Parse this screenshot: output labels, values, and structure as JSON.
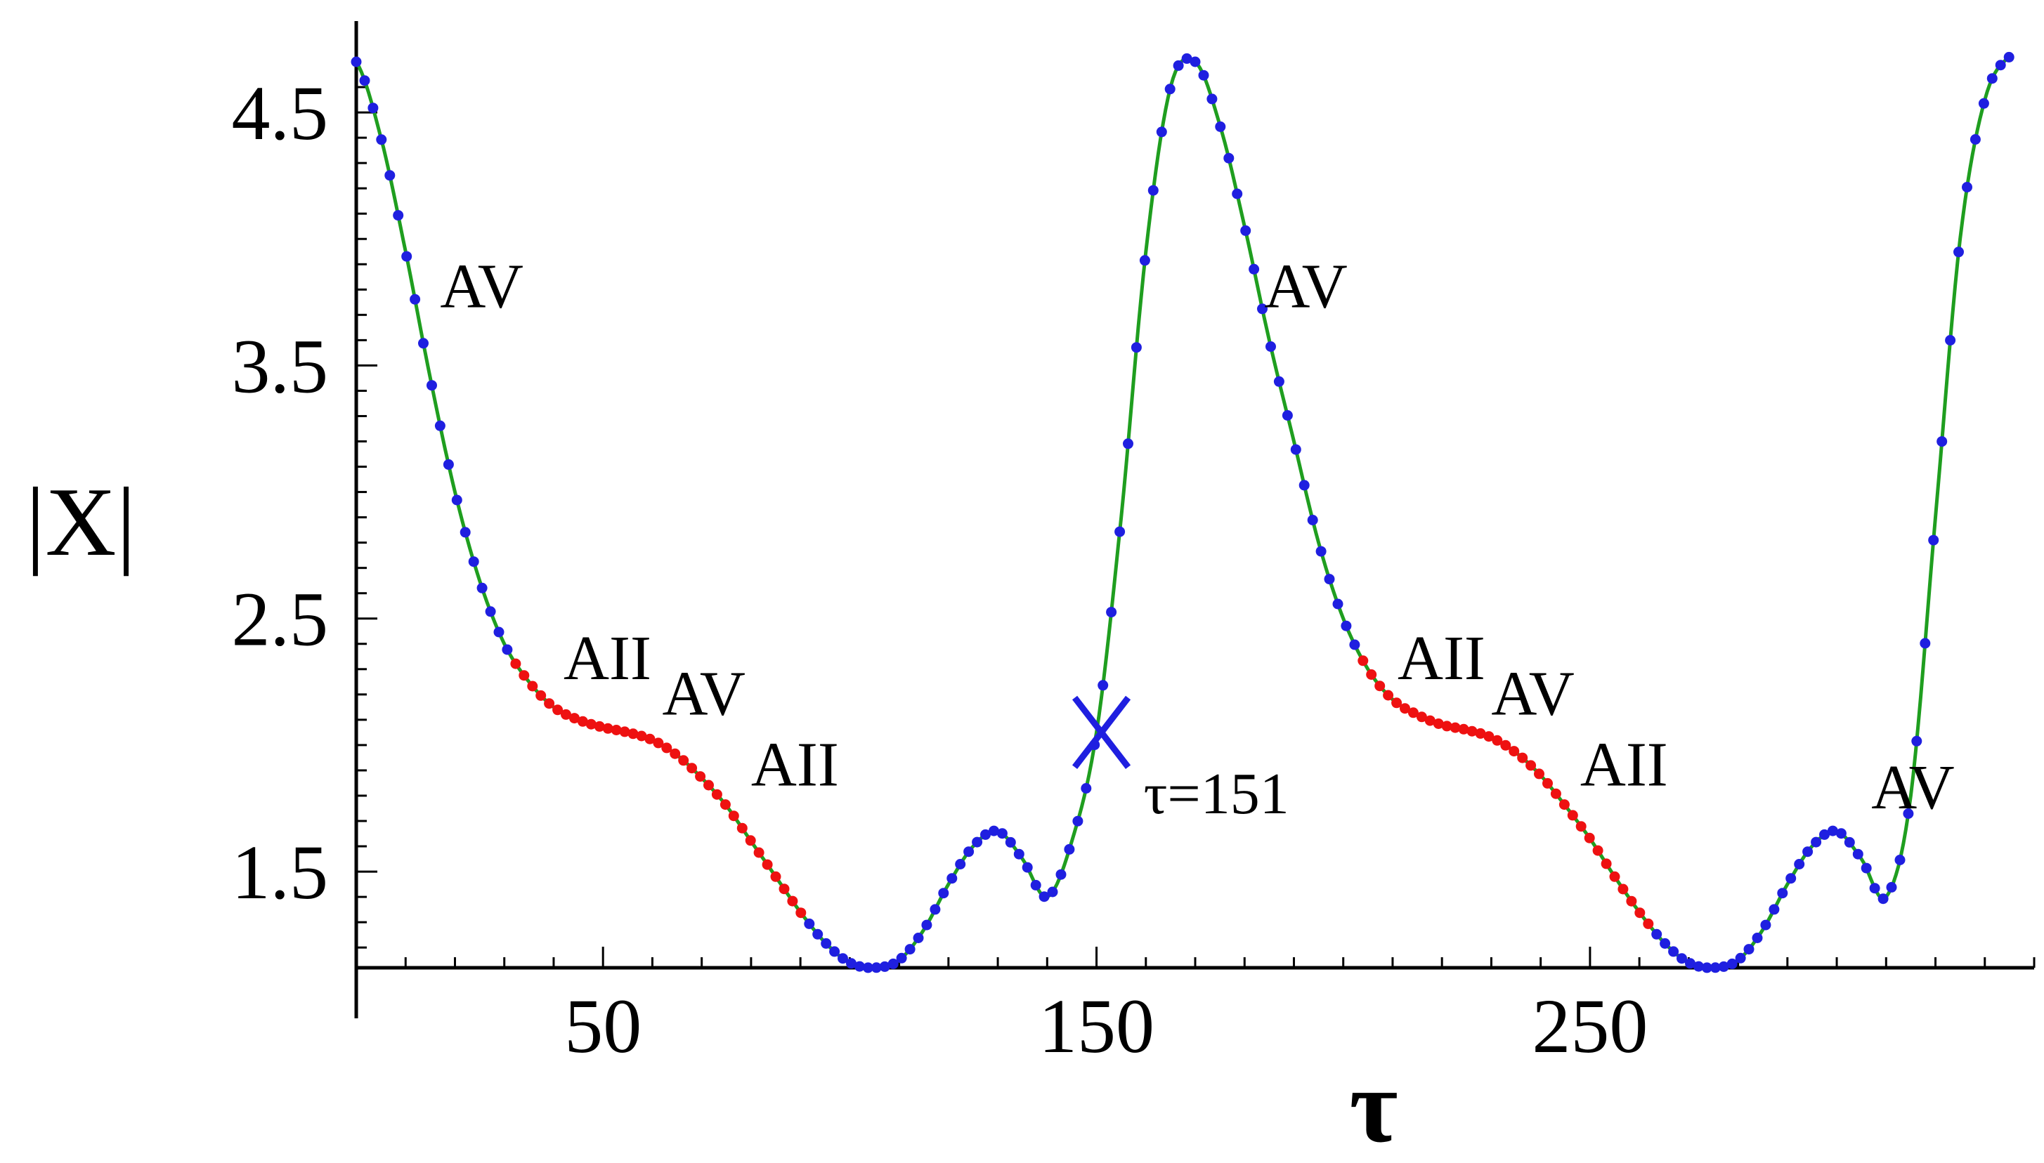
{
  "chart_data": {
    "type": "line",
    "title": "",
    "xlabel": "τ",
    "ylabel": "|X|",
    "xlim": [
      -1,
      340
    ],
    "ylim": [
      1.12,
      4.7
    ],
    "grid": false,
    "x_tick_labels": [
      {
        "value": 50,
        "label": "50"
      },
      {
        "value": 150,
        "label": "150"
      },
      {
        "value": 250,
        "label": "250"
      }
    ],
    "y_tick_labels": [
      {
        "value": 1.5,
        "label": "1.5"
      },
      {
        "value": 2.5,
        "label": "2.5"
      },
      {
        "value": 3.5,
        "label": "3.5"
      },
      {
        "value": 4.5,
        "label": "4.5"
      }
    ],
    "x_minor_step": 10,
    "y_minor_step": 0.1,
    "curve": {
      "x": [
        0,
        5,
        10,
        15,
        20,
        25,
        30,
        35,
        40,
        45,
        50,
        55,
        60,
        65,
        70,
        75,
        80,
        85,
        90,
        95,
        100,
        105,
        110,
        115,
        120,
        125,
        130,
        135,
        140,
        145,
        150,
        155,
        160,
        165,
        170,
        175,
        180,
        185,
        190,
        195,
        200,
        205,
        210,
        215,
        220,
        225,
        230,
        235,
        240,
        245,
        250,
        255,
        260,
        265,
        270,
        275,
        280,
        285,
        290,
        295,
        300,
        305,
        310,
        315,
        320,
        325,
        330,
        335
      ],
      "y": [
        4.7,
        4.4,
        3.95,
        3.45,
        3.0,
        2.65,
        2.4,
        2.25,
        2.15,
        2.1,
        2.07,
        2.05,
        2.02,
        1.96,
        1.87,
        1.76,
        1.62,
        1.48,
        1.34,
        1.22,
        1.14,
        1.12,
        1.15,
        1.27,
        1.45,
        1.6,
        1.66,
        1.55,
        1.4,
        1.62,
        2.05,
        2.9,
        3.95,
        4.6,
        4.7,
        4.45,
        4.05,
        3.6,
        3.2,
        2.8,
        2.5,
        2.3,
        2.18,
        2.12,
        2.08,
        2.06,
        2.03,
        1.97,
        1.88,
        1.76,
        1.63,
        1.48,
        1.34,
        1.22,
        1.14,
        1.12,
        1.15,
        1.27,
        1.45,
        1.6,
        1.66,
        1.55,
        1.4,
        1.8,
        2.9,
        4.0,
        4.55,
        4.72
      ],
      "line_color": "#1f9e1f",
      "point_color": "#1f1fe0",
      "highlight_color": "#ee1111",
      "highlight_ranges": [
        [
          32,
          91
        ],
        [
          203,
          262
        ]
      ],
      "point_step": 1.7
    },
    "annotations": [
      {
        "text": "AV",
        "x": 17,
        "y": 3.73
      },
      {
        "text": "AII",
        "x": 42,
        "y": 2.26
      },
      {
        "text": "AV",
        "x": 62,
        "y": 2.12
      },
      {
        "text": "AII",
        "x": 80,
        "y": 1.84
      },
      {
        "text": "AV",
        "x": 184,
        "y": 3.73
      },
      {
        "text": "AII",
        "x": 211,
        "y": 2.26
      },
      {
        "text": "AV",
        "x": 230,
        "y": 2.12
      },
      {
        "text": "AII",
        "x": 248,
        "y": 1.84
      },
      {
        "text": "AV",
        "x": 307,
        "y": 1.75
      }
    ],
    "marker": {
      "symbol": "X",
      "x": 151,
      "y": 2.05,
      "label": "τ=151",
      "color": "#1f1fe0"
    }
  }
}
